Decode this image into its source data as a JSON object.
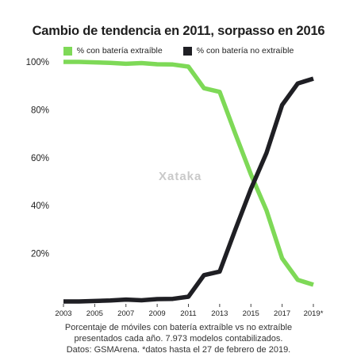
{
  "chart_data": {
    "type": "line",
    "title": "Cambio de tendencia en 2011, sorpasso en 2016",
    "xlabel": "",
    "ylabel": "",
    "x": [
      2003,
      2004,
      2005,
      2006,
      2007,
      2008,
      2009,
      2010,
      2011,
      2012,
      2013,
      2014,
      2015,
      2016,
      2017,
      2018,
      2019
    ],
    "x_tick_labels": [
      "2003",
      "2005",
      "2007",
      "2009",
      "2011",
      "2013",
      "2015",
      "2017",
      "2019*"
    ],
    "x_tick_values": [
      2003,
      2005,
      2007,
      2009,
      2011,
      2013,
      2015,
      2017,
      2019
    ],
    "y_tick_labels": [
      "20%",
      "40%",
      "60%",
      "80%",
      "100%"
    ],
    "y_tick_values": [
      20,
      40,
      60,
      80,
      100
    ],
    "ylim": [
      0,
      100
    ],
    "xlim": [
      2003,
      2019
    ],
    "grid": false,
    "legend_position": "top",
    "series": [
      {
        "name": "% con batería extraíble",
        "color": "#7ed957",
        "values": [
          100,
          100,
          99.8,
          99.6,
          99.2,
          99.5,
          99,
          98.9,
          98,
          89,
          87.5,
          70,
          53,
          38,
          18,
          9,
          7
        ]
      },
      {
        "name": "% con batería no extraíble",
        "color": "#1f1f24",
        "values": [
          0,
          0,
          0.2,
          0.4,
          0.8,
          0.5,
          1,
          1.1,
          2,
          11,
          12.5,
          30,
          47,
          62,
          82,
          91,
          93
        ]
      }
    ]
  },
  "watermark": "Xataka",
  "caption": [
    "Porcentaje de móviles con batería extraíble vs no extraíble",
    "presentados cada año. 7.973 modelos contabilizados.",
    "Datos: GSMArena. *datos hasta el 27 de febrero de 2019."
  ]
}
